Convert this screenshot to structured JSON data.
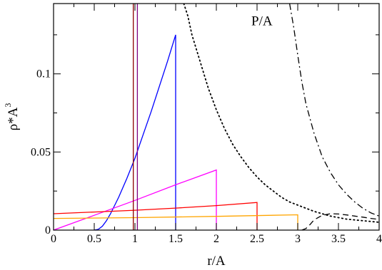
{
  "chart_data": {
    "type": "line",
    "xlabel": "r/A",
    "ylabel_base": "ρ*A",
    "ylabel_exp": "3",
    "annotation": "P/A",
    "xlim": [
      0,
      4
    ],
    "ylim": [
      0,
      0.145
    ],
    "x_ticks": [
      0,
      0.5,
      1,
      1.5,
      2,
      2.5,
      3,
      3.5,
      4
    ],
    "x_tick_labels": [
      "0",
      "0.5",
      "1",
      "1.5",
      "2",
      "2.5",
      "3",
      "3.5",
      "4"
    ],
    "y_ticks": [
      0,
      0.05,
      0.1
    ],
    "y_tick_labels": [
      "0",
      "0.05",
      "0.1"
    ],
    "grid": false,
    "series": [
      {
        "color": "#0000ff",
        "style": "solid",
        "points": [
          [
            0.5,
            0
          ],
          [
            0.55,
            0.0005
          ],
          [
            0.6,
            0.0025
          ],
          [
            0.65,
            0.006
          ],
          [
            0.7,
            0.0105
          ],
          [
            0.8,
            0.021
          ],
          [
            0.9,
            0.033
          ],
          [
            1.0,
            0.046
          ],
          [
            1.1,
            0.061
          ],
          [
            1.2,
            0.076
          ],
          [
            1.3,
            0.092
          ],
          [
            1.4,
            0.108
          ],
          [
            1.5,
            0.125
          ],
          [
            1.5,
            0
          ]
        ]
      },
      {
        "color": "#ff00ff",
        "style": "solid",
        "points": [
          [
            0,
            0
          ],
          [
            0.5,
            0.0095
          ],
          [
            1.0,
            0.019
          ],
          [
            1.5,
            0.029
          ],
          [
            2.0,
            0.0385
          ],
          [
            2.0,
            0
          ]
        ]
      },
      {
        "color": "#ff0000",
        "style": "solid",
        "points": [
          [
            0,
            0.0105
          ],
          [
            0.5,
            0.0116
          ],
          [
            1.0,
            0.0127
          ],
          [
            1.5,
            0.0141
          ],
          [
            2.0,
            0.0157
          ],
          [
            2.5,
            0.0177
          ],
          [
            2.5,
            0
          ]
        ]
      },
      {
        "color": "#ffa500",
        "style": "solid",
        "points": [
          [
            0,
            0.0075
          ],
          [
            1.0,
            0.008
          ],
          [
            2.0,
            0.0088
          ],
          [
            3.0,
            0.0098
          ],
          [
            3.0,
            0
          ]
        ]
      },
      {
        "color": "#8b0000",
        "style": "solid",
        "points": [
          [
            0.98,
            0
          ],
          [
            0.98,
            0.145
          ]
        ]
      },
      {
        "color": "#800080",
        "style": "solid",
        "points": [
          [
            1.03,
            0
          ],
          [
            1.03,
            0.145
          ]
        ]
      },
      {
        "color": "#000000",
        "style": "dotted",
        "points": [
          [
            1.6,
            0.145
          ],
          [
            1.65,
            0.137
          ],
          [
            1.7,
            0.125
          ],
          [
            1.8,
            0.108
          ],
          [
            1.9,
            0.091
          ],
          [
            2.0,
            0.077
          ],
          [
            2.1,
            0.065
          ],
          [
            2.2,
            0.055
          ],
          [
            2.3,
            0.047
          ],
          [
            2.4,
            0.04
          ],
          [
            2.5,
            0.034
          ],
          [
            2.6,
            0.029
          ],
          [
            2.7,
            0.025
          ],
          [
            2.8,
            0.021
          ],
          [
            2.9,
            0.018
          ],
          [
            3.0,
            0.016
          ],
          [
            3.2,
            0.012
          ],
          [
            3.4,
            0.009
          ],
          [
            3.6,
            0.007
          ],
          [
            3.8,
            0.006
          ],
          [
            4.0,
            0.005
          ]
        ]
      },
      {
        "color": "#000000",
        "style": "dashdot",
        "points": [
          [
            2.9,
            0.145
          ],
          [
            2.95,
            0.13
          ],
          [
            3.0,
            0.112
          ],
          [
            3.05,
            0.095
          ],
          [
            3.1,
            0.081
          ],
          [
            3.2,
            0.062
          ],
          [
            3.3,
            0.047
          ],
          [
            3.4,
            0.037
          ],
          [
            3.5,
            0.029
          ],
          [
            3.6,
            0.023
          ],
          [
            3.7,
            0.018
          ],
          [
            3.8,
            0.014
          ],
          [
            3.9,
            0.011
          ],
          [
            4.0,
            0.009
          ]
        ]
      },
      {
        "color": "#000000",
        "style": "dashed",
        "points": [
          [
            3.05,
            0
          ],
          [
            3.1,
            0.001
          ],
          [
            3.15,
            0.0035
          ],
          [
            3.2,
            0.0065
          ],
          [
            3.3,
            0.0095
          ],
          [
            3.4,
            0.0105
          ],
          [
            3.5,
            0.0103
          ],
          [
            3.6,
            0.0097
          ],
          [
            3.7,
            0.009
          ],
          [
            3.8,
            0.0083
          ],
          [
            3.9,
            0.0075
          ],
          [
            4.0,
            0.0068
          ]
        ]
      }
    ]
  }
}
